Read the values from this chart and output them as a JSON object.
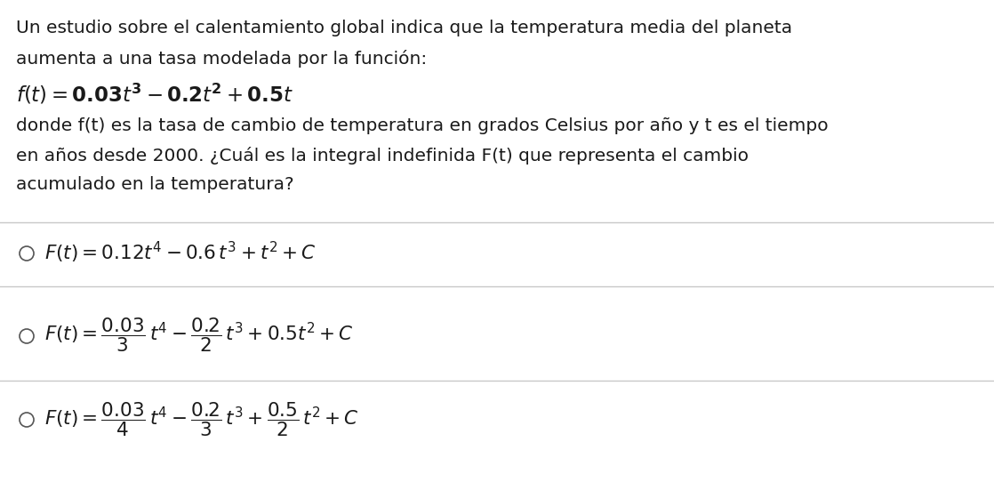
{
  "background_color": "#ffffff",
  "text_color": "#1a1a1a",
  "para_line1": "Un estudio sobre el calentamiento global indica que la temperatura media del planeta",
  "para_line2": "aumenta a una tasa modelada por la función:",
  "function_formula": "$\\mathit{f}(\\mathit{t}) = \\mathbf{0.03}\\mathit{t}^\\mathbf{3} - \\mathbf{0.2}\\mathit{t}^\\mathbf{2} + \\mathbf{0.5}\\mathit{t}$",
  "desc_line1": "donde f(t) es la tasa de cambio de temperatura en grados Celsius por año y t es el tiempo",
  "desc_line2": "en años desde 2000. ¿Cuál es la integral indefinida F(t) que representa el cambio",
  "desc_line3": "acumulado en la temperatura?",
  "option1": "$F(t) = 0.12t^4 - 0.6\\,t^3 + t^2 + C$",
  "option2": "$F(t) = \\dfrac{0.03}{3}\\,t^4 - \\dfrac{0.2}{2}\\,t^3 + 0.5t^2 + C$",
  "option3": "$F(t) = \\dfrac{0.03}{4}\\,t^4 - \\dfrac{0.2}{3}\\,t^3 + \\dfrac{0.5}{2}\\,t^2 + C$",
  "font_size_para": 14.5,
  "font_size_formula": 15.5,
  "font_size_options": 15.5,
  "separator_color": "#c8c8c8",
  "circle_color": "#555555"
}
